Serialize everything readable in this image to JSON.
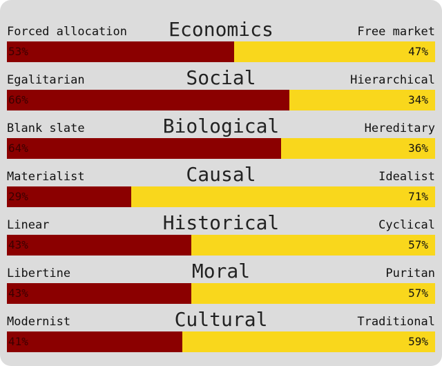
{
  "colors": {
    "left_bar": "#8b0000",
    "right_bar": "#f9d71c",
    "background": "#dcdcdc"
  },
  "axes": [
    {
      "title": "Economics",
      "left_label": "Forced allocation",
      "right_label": "Free market",
      "left_value": 53,
      "right_value": 47,
      "left_pct": "53%",
      "right_pct": "47%"
    },
    {
      "title": "Social",
      "left_label": "Egalitarian",
      "right_label": "Hierarchical",
      "left_value": 66,
      "right_value": 34,
      "left_pct": "66%",
      "right_pct": "34%"
    },
    {
      "title": "Biological",
      "left_label": "Blank slate",
      "right_label": "Hereditary",
      "left_value": 64,
      "right_value": 36,
      "left_pct": "64%",
      "right_pct": "36%"
    },
    {
      "title": "Causal",
      "left_label": "Materialist",
      "right_label": "Idealist",
      "left_value": 29,
      "right_value": 71,
      "left_pct": "29%",
      "right_pct": "71%"
    },
    {
      "title": "Historical",
      "left_label": "Linear",
      "right_label": "Cyclical",
      "left_value": 43,
      "right_value": 57,
      "left_pct": "43%",
      "right_pct": "57%"
    },
    {
      "title": "Moral",
      "left_label": "Libertine",
      "right_label": "Puritan",
      "left_value": 43,
      "right_value": 57,
      "left_pct": "43%",
      "right_pct": "57%"
    },
    {
      "title": "Cultural",
      "left_label": "Modernist",
      "right_label": "Traditional",
      "left_value": 41,
      "right_value": 59,
      "left_pct": "41%",
      "right_pct": "59%"
    }
  ]
}
